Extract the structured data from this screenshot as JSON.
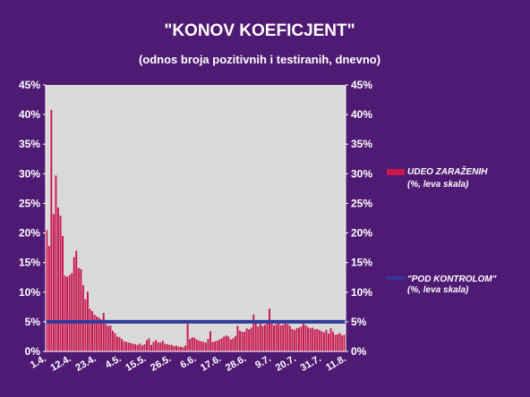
{
  "colors": {
    "background": "#4f1a73",
    "plot_area": "#d9d9d9",
    "bars": "#c8174f",
    "threshold_line": "#2f3a9c",
    "text": "#ffffff"
  },
  "chart_data": {
    "type": "bar",
    "title": "\"KONOV KOEFICJENT\"",
    "subtitle": "(odnos broja pozitivnih i testiranih, dnevno)",
    "ylim": [
      0,
      45
    ],
    "y_ticks": [
      "0%",
      "5%",
      "10%",
      "15%",
      "20%",
      "25%",
      "30%",
      "35%",
      "40%",
      "45%"
    ],
    "y_ticks_right": [
      "0%",
      "5%",
      "10%",
      "15%",
      "20%",
      "25%",
      "30%",
      "35%",
      "40%",
      "45%"
    ],
    "x_tick_labels": [
      {
        "day": 0,
        "label": "1.4."
      },
      {
        "day": 11,
        "label": "12.4."
      },
      {
        "day": 22,
        "label": "23.4."
      },
      {
        "day": 33,
        "label": "4.5."
      },
      {
        "day": 44,
        "label": "15.5."
      },
      {
        "day": 55,
        "label": "26.5."
      },
      {
        "day": 66,
        "label": "6.6."
      },
      {
        "day": 77,
        "label": "17.6."
      },
      {
        "day": 88,
        "label": "28.6."
      },
      {
        "day": 99,
        "label": "9.7."
      },
      {
        "day": 110,
        "label": "20.7."
      },
      {
        "day": 121,
        "label": "31.7."
      },
      {
        "day": 132,
        "label": "11.8."
      }
    ],
    "grid": false,
    "legend_position": "right",
    "series": [
      {
        "name": "UDEO ZARAŽENIH",
        "legend_note": "(%, leva skala)",
        "type": "bar",
        "values": [
          20.5,
          17.8,
          40.8,
          23.2,
          29.7,
          24.3,
          22.9,
          19.5,
          12.8,
          12.6,
          12.9,
          13.2,
          15.9,
          17.0,
          14.1,
          13.9,
          11.2,
          8.8,
          10.1,
          7.2,
          6.8,
          6.2,
          5.9,
          5.7,
          5.4,
          6.5,
          4.6,
          4.3,
          4.4,
          3.5,
          3.1,
          2.5,
          2.4,
          2.1,
          1.7,
          1.6,
          1.5,
          1.4,
          1.3,
          1.2,
          1.1,
          1.3,
          1.0,
          1.2,
          1.9,
          2.2,
          1.1,
          1.6,
          1.9,
          1.5,
          1.5,
          1.8,
          1.3,
          1.2,
          1.1,
          1.1,
          0.9,
          1.0,
          0.8,
          0.8,
          0.7,
          1.0,
          4.9,
          2.1,
          2.4,
          2.3,
          2.0,
          1.8,
          1.7,
          1.6,
          1.5,
          2.1,
          3.4,
          1.6,
          1.7,
          1.8,
          2.0,
          2.2,
          2.5,
          2.7,
          2.5,
          2.0,
          2.2,
          2.6,
          4.3,
          3.5,
          3.3,
          3.3,
          3.9,
          3.7,
          4.0,
          6.2,
          4.7,
          4.2,
          4.7,
          4.3,
          4.5,
          4.8,
          7.2,
          4.8,
          4.4,
          4.6,
          4.7,
          4.4,
          4.5,
          5.2,
          4.6,
          4.3,
          3.8,
          3.6,
          3.9,
          4.0,
          4.2,
          4.7,
          4.4,
          4.1,
          3.9,
          4.0,
          3.7,
          3.8,
          3.6,
          3.4,
          3.2,
          3.6,
          3.0,
          3.9,
          3.3,
          2.8,
          2.9,
          3.1,
          2.7,
          2.8
        ]
      },
      {
        "name": "\"POD KONTROLOM\"",
        "legend_note": "(%, leva skala)",
        "type": "line",
        "value": 5
      }
    ]
  }
}
